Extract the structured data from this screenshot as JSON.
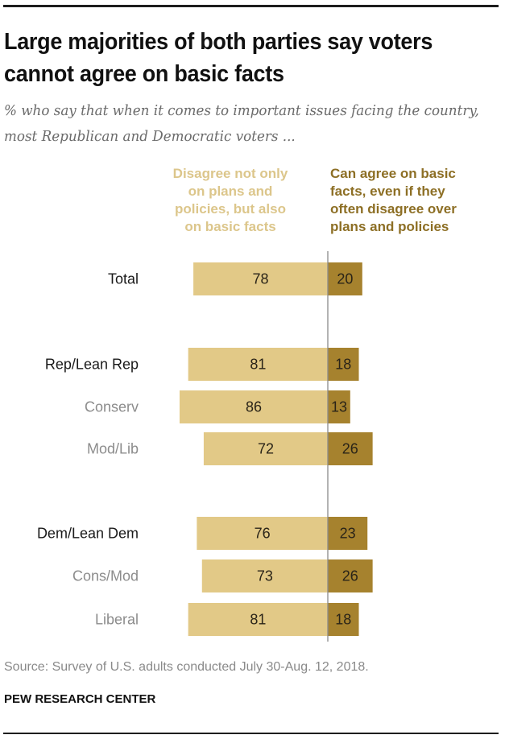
{
  "title": "Large majorities of both parties say voters cannot agree on basic facts",
  "subtitle": "% who say that when it comes to important issues facing the country, most Republican and Democratic voters ...",
  "colors": {
    "disagree": "#E2C987",
    "agree": "#A6822E",
    "axis": "#8a8a8a",
    "primary_label": "#1a1a1a",
    "secondary_label": "#8c8c8c"
  },
  "chart_data": {
    "type": "bar",
    "orientation": "horizontal-diverging",
    "title": "Large majorities of both parties say voters cannot agree on basic facts",
    "subtitle": "% who say that when it comes to important issues facing the country, most Republican and Democratic voters ...",
    "categories": [
      "Total",
      "Rep/Lean Rep",
      "Conserv",
      "Mod/Lib",
      "Dem/Lean Dem",
      "Cons/Mod",
      "Liberal"
    ],
    "category_levels": [
      "primary",
      "primary",
      "secondary",
      "secondary",
      "primary",
      "secondary",
      "secondary"
    ],
    "groups": [
      [
        0
      ],
      [
        1,
        2,
        3
      ],
      [
        4,
        5,
        6
      ]
    ],
    "series": [
      {
        "name": "Disagree not only on plans and policies, but also on basic facts",
        "side": "left",
        "values": [
          78,
          81,
          86,
          72,
          76,
          73,
          81
        ]
      },
      {
        "name": "Can agree on basic facts, even if they often disagree over plans and policies",
        "side": "right",
        "values": [
          20,
          18,
          13,
          26,
          23,
          26,
          18
        ]
      }
    ],
    "xlabel": "",
    "ylabel": "",
    "units": "%",
    "grid": false,
    "legend": "top"
  },
  "legend": {
    "disagree_lines": [
      "Disagree not only",
      "on plans and",
      "policies,  but also",
      "on basic facts"
    ],
    "agree_lines": [
      "Can agree on basic",
      "facts, even if they",
      "often disagree over",
      "plans and policies"
    ]
  },
  "source": "Source: Survey of U.S. adults conducted July 30-Aug. 12, 2018.",
  "brand": "PEW RESEARCH CENTER"
}
